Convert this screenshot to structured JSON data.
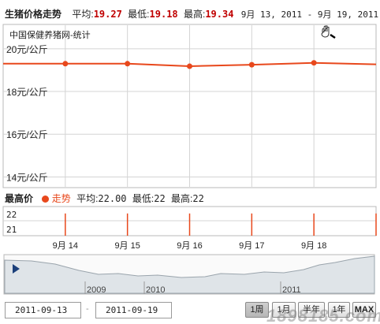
{
  "header": {
    "title": "生猪价格走势",
    "avg_label": "平均:",
    "avg_value": "19.27",
    "min_label": "最低:",
    "min_value": "19.18",
    "max_label": "最高:",
    "max_value": "19.34",
    "date_range": "9月 13, 2011 - 9月 19, 2011"
  },
  "source_label": "中国保健养猪网-统计",
  "colors": {
    "series": "#e8481c",
    "grid": "#d4d4d4",
    "accent_red": "#c00000",
    "navigator_fill": "#dfe4e8"
  },
  "chart_data": [
    {
      "type": "line",
      "title": "",
      "x": [
        "2011-09-13",
        "2011-09-14",
        "2011-09-15",
        "2011-09-16",
        "2011-09-17",
        "2011-09-18",
        "2011-09-19"
      ],
      "series": [
        {
          "values": [
            19.3,
            19.3,
            19.3,
            19.18,
            19.25,
            19.34,
            19.27
          ]
        }
      ],
      "ylim": [
        13.5,
        21.1
      ],
      "ytick_values": [
        20,
        18,
        16,
        14
      ],
      "ytick_labels": [
        "20元/公斤",
        "18元/公斤",
        "16元/公斤",
        "14元/公斤"
      ],
      "grid": true
    },
    {
      "type": "bar",
      "title": "最高价",
      "legend_label": "走势",
      "avg_label": "平均:",
      "avg_value": "22.00",
      "min_label": "最低:",
      "min_value": "22",
      "max_label": "最高:",
      "max_value": "22",
      "x": [
        "2011-09-13",
        "2011-09-14",
        "2011-09-15",
        "2011-09-16",
        "2011-09-17",
        "2011-09-18",
        "2011-09-19"
      ],
      "values": [
        22,
        22,
        22,
        22,
        22,
        22,
        22
      ],
      "ylim": [
        20.6,
        22.4
      ],
      "ytick_labels": [
        "22",
        "21"
      ]
    }
  ],
  "x_axis_labels": [
    "9月 14",
    "9月 15",
    "9月 16",
    "9月 17",
    "9月 18"
  ],
  "navigator": {
    "year_labels": [
      "2009",
      "2010",
      "2011"
    ]
  },
  "range": {
    "start": "2011-09-13",
    "end": "2011-09-19",
    "separator": "-"
  },
  "range_buttons": [
    "1周",
    "1月",
    "半年",
    "1年",
    "MAX"
  ],
  "watermark": "1898185.com"
}
